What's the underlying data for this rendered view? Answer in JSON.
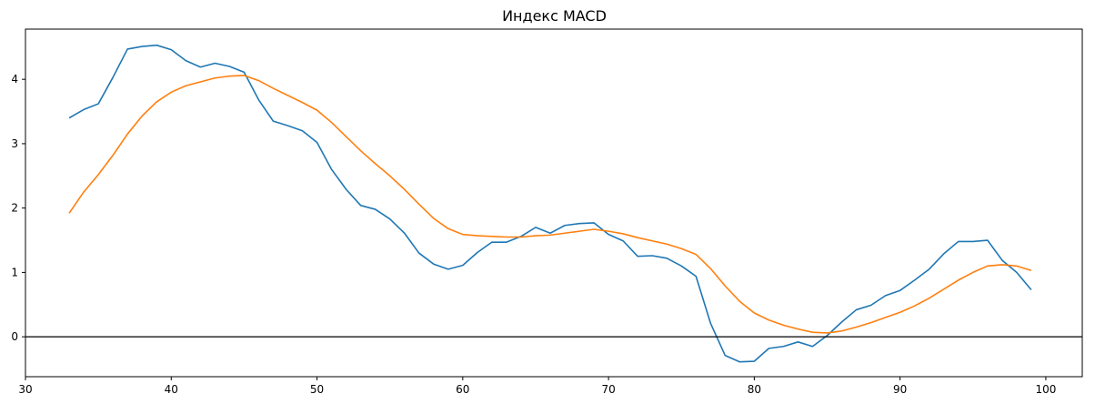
{
  "chart_data": {
    "type": "line",
    "title": "Индекс MACD",
    "xlabel": "",
    "ylabel": "",
    "xlim": [
      30,
      102.5
    ],
    "ylim": [
      -0.62,
      4.78
    ],
    "xticks": [
      30,
      40,
      50,
      60,
      70,
      80,
      90,
      100
    ],
    "yticks": [
      0,
      1,
      2,
      3,
      4
    ],
    "grid": false,
    "legend": "none",
    "reference_line": {
      "y": 0,
      "color": "#000000"
    },
    "x": [
      33,
      34,
      35,
      36,
      37,
      38,
      39,
      40,
      41,
      42,
      43,
      44,
      45,
      46,
      47,
      48,
      49,
      50,
      51,
      52,
      53,
      54,
      55,
      56,
      57,
      58,
      59,
      60,
      61,
      62,
      63,
      64,
      65,
      66,
      67,
      68,
      69,
      70,
      71,
      72,
      73,
      74,
      75,
      76,
      77,
      78,
      79,
      80,
      81,
      82,
      83,
      84,
      85,
      86,
      87,
      88,
      89,
      90,
      91,
      92,
      93,
      94,
      95,
      96,
      97,
      98,
      99
    ],
    "series": [
      {
        "color": "#1f77b4",
        "values": [
          3.4,
          3.53,
          3.62,
          4.03,
          4.47,
          4.51,
          4.53,
          4.46,
          4.29,
          4.19,
          4.25,
          4.2,
          4.11,
          3.68,
          3.35,
          3.28,
          3.2,
          3.02,
          2.6,
          2.29,
          2.04,
          1.98,
          1.83,
          1.61,
          1.3,
          1.13,
          1.05,
          1.11,
          1.31,
          1.47,
          1.47,
          1.56,
          1.7,
          1.61,
          1.73,
          1.76,
          1.77,
          1.59,
          1.49,
          1.25,
          1.26,
          1.22,
          1.1,
          0.94,
          0.21,
          -0.29,
          -0.39,
          -0.38,
          -0.18,
          -0.15,
          -0.08,
          -0.15,
          0.02,
          0.23,
          0.42,
          0.49,
          0.64,
          0.72,
          0.88,
          1.05,
          1.29,
          1.48,
          1.48,
          1.5,
          1.19,
          1.0,
          0.73
        ]
      },
      {
        "color": "#ff7f0e",
        "values": [
          1.92,
          2.25,
          2.52,
          2.82,
          3.15,
          3.43,
          3.65,
          3.8,
          3.9,
          3.96,
          4.02,
          4.05,
          4.06,
          3.98,
          3.86,
          3.75,
          3.64,
          3.52,
          3.33,
          3.11,
          2.89,
          2.69,
          2.5,
          2.29,
          2.06,
          1.84,
          1.68,
          1.59,
          1.57,
          1.56,
          1.55,
          1.55,
          1.57,
          1.58,
          1.61,
          1.64,
          1.67,
          1.64,
          1.6,
          1.54,
          1.49,
          1.44,
          1.37,
          1.28,
          1.06,
          0.79,
          0.55,
          0.37,
          0.26,
          0.18,
          0.12,
          0.07,
          0.06,
          0.09,
          0.15,
          0.22,
          0.3,
          0.38,
          0.48,
          0.6,
          0.74,
          0.88,
          1.0,
          1.1,
          1.12,
          1.1,
          1.03
        ]
      }
    ]
  }
}
